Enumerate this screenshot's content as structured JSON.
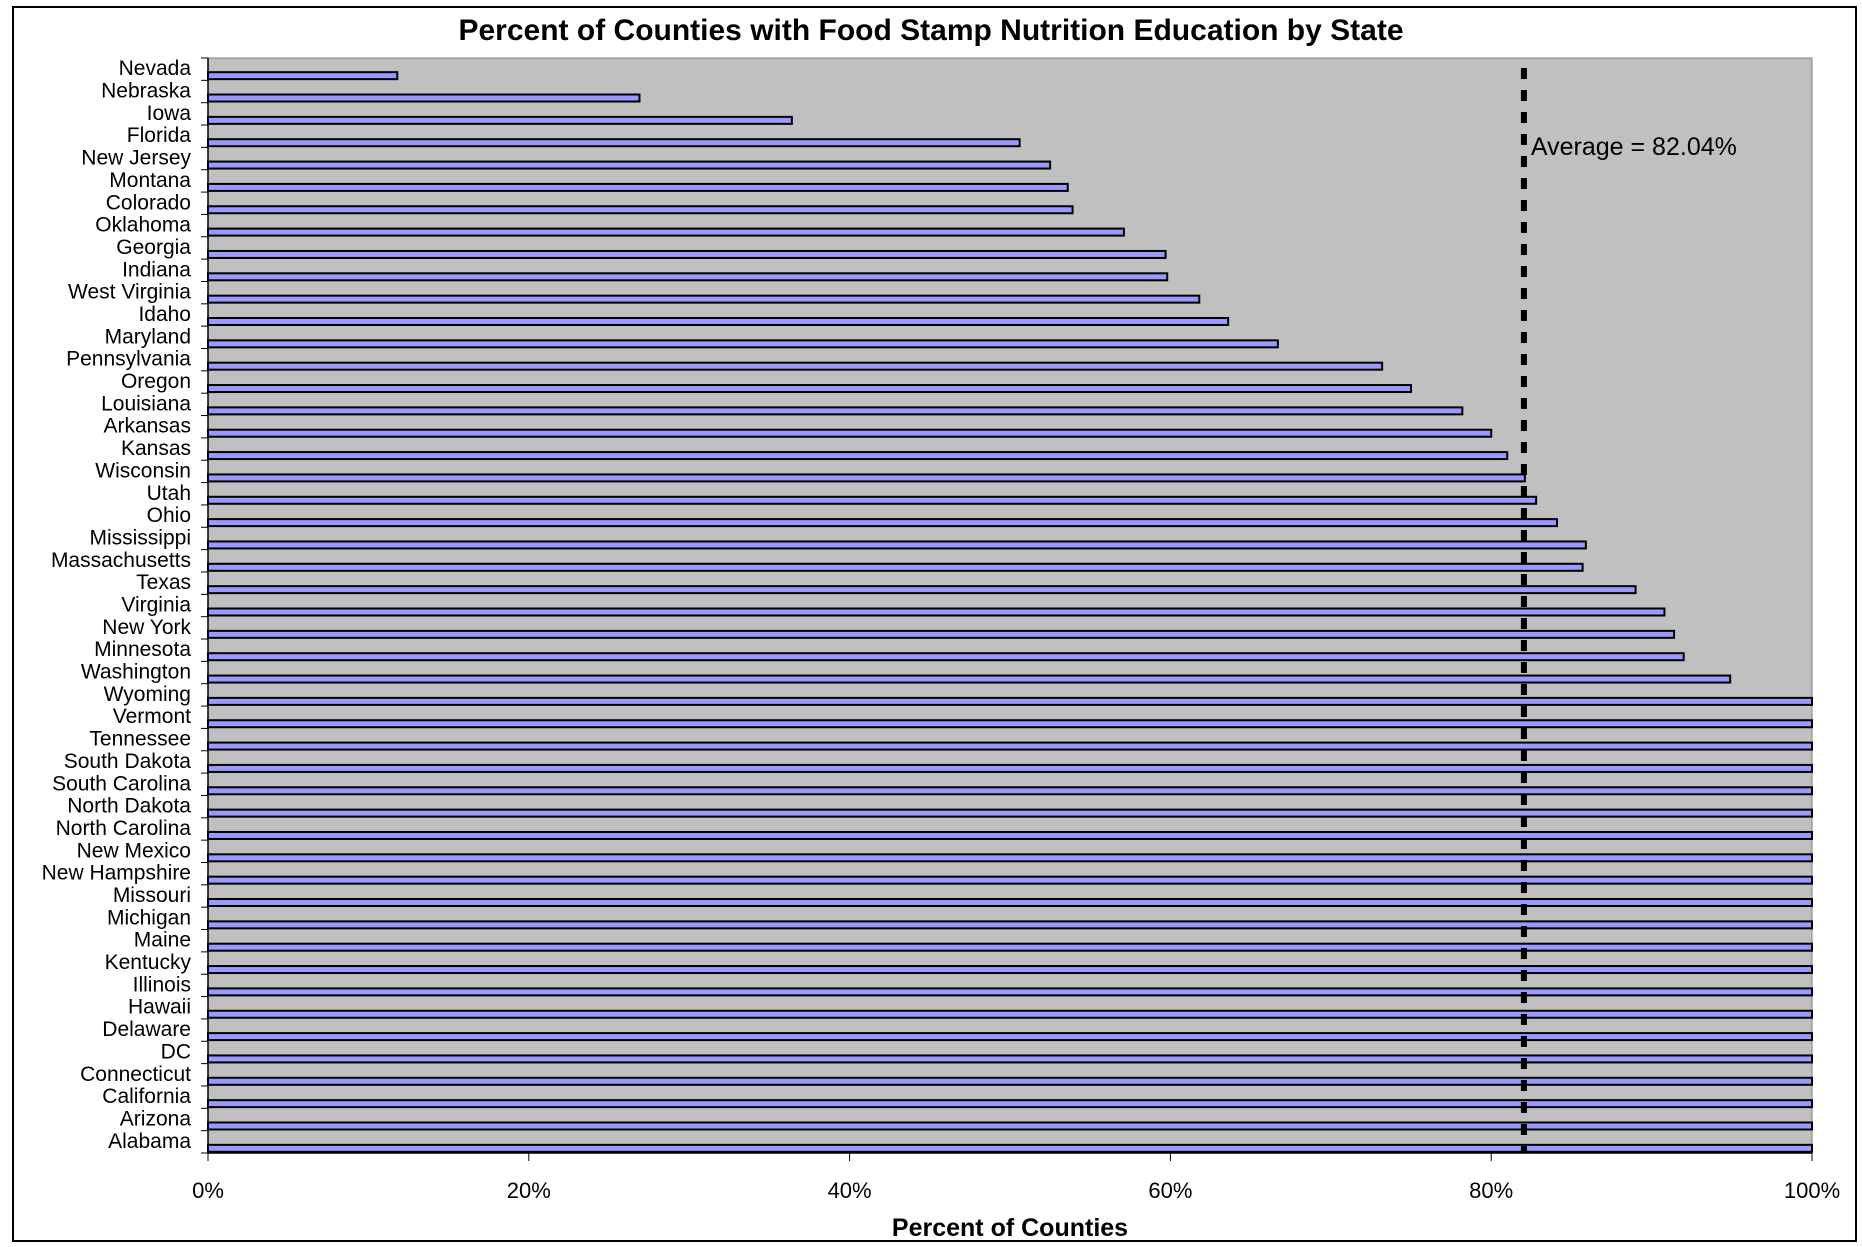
{
  "chart_data": {
    "type": "bar",
    "orientation": "horizontal",
    "title": "Percent of Counties with Food Stamp Nutrition Education by State",
    "xlabel": "Percent of Counties",
    "ylabel": "",
    "xlim": [
      0,
      100
    ],
    "x_ticks": [
      "0%",
      "20%",
      "40%",
      "60%",
      "80%",
      "100%"
    ],
    "grid": false,
    "legend": "none",
    "categories": [
      "Nevada",
      "Nebraska",
      "Iowa",
      "Florida",
      "New Jersey",
      "Montana",
      "Colorado",
      "Oklahoma",
      "Georgia",
      "Indiana",
      "West Virginia",
      "Idaho",
      "Maryland",
      "Pennsylvania",
      "Oregon",
      "Louisiana",
      "Arkansas",
      "Kansas",
      "Wisconsin",
      "Utah",
      "Ohio",
      "Mississippi",
      "Massachusetts",
      "Texas",
      "Virginia",
      "New York",
      "Minnesota",
      "Washington",
      "Wyoming",
      "Vermont",
      "Tennessee",
      "South Dakota",
      "South Carolina",
      "North Dakota",
      "North Carolina",
      "New Mexico",
      "New Hampshire",
      "Missouri",
      "Michigan",
      "Maine",
      "Kentucky",
      "Illinois",
      "Hawaii",
      "Delaware",
      "DC",
      "Connecticut",
      "California",
      "Arizona",
      "Alabama"
    ],
    "values": [
      11.8,
      26.9,
      36.4,
      50.6,
      52.5,
      53.6,
      53.9,
      57.1,
      59.7,
      59.8,
      61.8,
      63.6,
      66.7,
      73.2,
      75.0,
      78.2,
      80.0,
      81.0,
      82.1,
      82.8,
      84.1,
      85.9,
      85.7,
      89.0,
      90.8,
      91.4,
      92.0,
      94.9,
      100,
      100,
      100,
      100,
      100,
      100,
      100,
      100,
      100,
      100,
      100,
      100,
      100,
      100,
      100,
      100,
      100,
      100,
      100,
      100,
      100
    ],
    "average": {
      "label": "Average = 82.04%",
      "value": 82.04
    },
    "colors": {
      "plot_bg": "#c0c0c0",
      "bar_fill": "#9999ff",
      "bar_stroke": "#000000",
      "avg_line": "#000000"
    }
  }
}
